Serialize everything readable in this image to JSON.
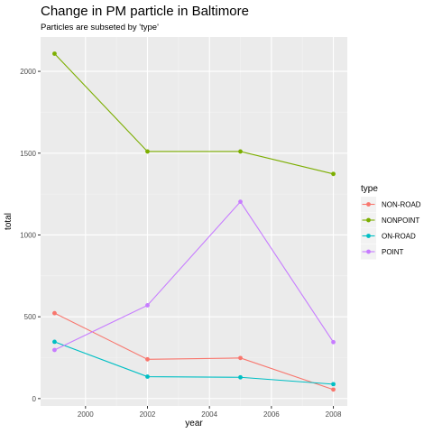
{
  "chart_data": {
    "type": "line",
    "title": "Change in PM particle in Baltimore",
    "subtitle": "Particles are subseted by 'type'",
    "xlabel": "year",
    "ylabel": "total",
    "x": [
      1999,
      2002,
      2005,
      2008
    ],
    "xlim": [
      1998.55,
      2008.45
    ],
    "ylim": [
      -45,
      2210
    ],
    "x_ticks": [
      2000,
      2002,
      2004,
      2006,
      2008
    ],
    "y_ticks": [
      0,
      500,
      1000,
      1500,
      2000
    ],
    "x_tick_labels": [
      "2000",
      "2002",
      "2004",
      "2006",
      "2008"
    ],
    "y_tick_labels": [
      "0",
      "500",
      "1000",
      "1500",
      "2000"
    ],
    "grid": true,
    "legend": {
      "title": "type",
      "placement": "right"
    },
    "series": [
      {
        "name": "NON-ROAD",
        "color": "#F8766D",
        "values": [
          522,
          240,
          248,
          55
        ]
      },
      {
        "name": "NONPOINT",
        "color": "#7CAE00",
        "values": [
          2108,
          1510,
          1510,
          1373
        ]
      },
      {
        "name": "ON-ROAD",
        "color": "#00BFC4",
        "values": [
          347,
          134,
          130,
          88
        ]
      },
      {
        "name": "POINT",
        "color": "#C77CFF",
        "values": [
          297,
          570,
          1203,
          345
        ]
      }
    ]
  }
}
